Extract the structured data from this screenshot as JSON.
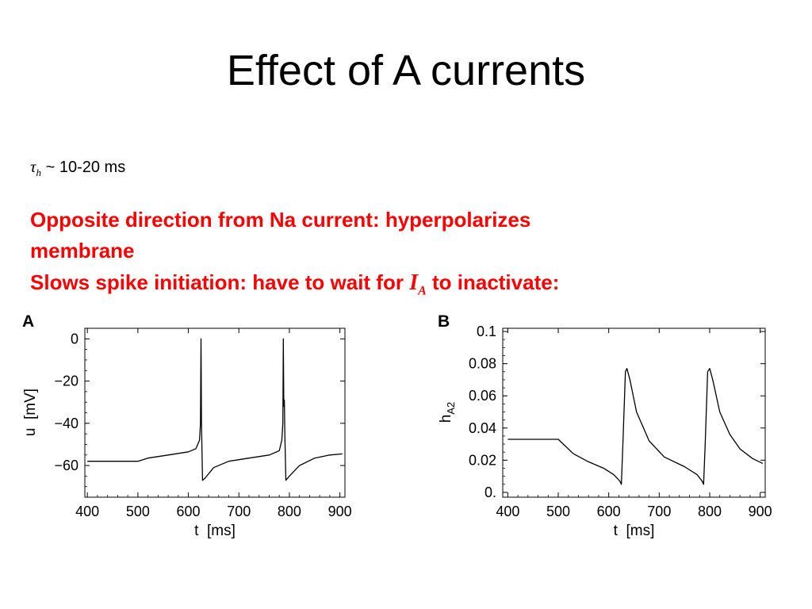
{
  "slide": {
    "title": "Effect of A currents",
    "tau_symbol": "τ",
    "tau_subscript": "h",
    "tau_text": " ~ 10-20 ms",
    "line1": "Opposite direction from Na current: hyperpolarizes",
    "line2": "membrane",
    "line3_before": "Slows spike initiation: have to wait for ",
    "ia_symbol": "I",
    "ia_subscript": "A",
    "line3_after": " to inactivate:"
  },
  "chart_data": [
    {
      "panel": "A",
      "type": "line",
      "xlabel": "t  [ms]",
      "ylabel": "u  [mV]",
      "xticks": [
        "400",
        "500",
        "600",
        "700",
        "800",
        "900"
      ],
      "yticks": [
        "0",
        "−20",
        "−40",
        "−60"
      ],
      "xlim": [
        395,
        910
      ],
      "ylim": [
        -75,
        5
      ],
      "grid": false,
      "series": [
        {
          "points": [
            [
              400,
              -58
            ],
            [
              500,
              -58
            ],
            [
              520,
              -56.5
            ],
            [
              560,
              -55
            ],
            [
              600,
              -53.5
            ],
            [
              615,
              -52
            ],
            [
              622,
              -48
            ],
            [
              624,
              -40
            ],
            [
              625,
              0
            ],
            [
              626,
              -40
            ],
            [
              628,
              -67
            ],
            [
              633,
              -66
            ],
            [
              650,
              -61
            ],
            [
              680,
              -58
            ],
            [
              720,
              -56.5
            ],
            [
              760,
              -55
            ],
            [
              780,
              -53
            ],
            [
              785,
              -48
            ],
            [
              787,
              -40
            ],
            [
              788,
              0
            ],
            [
              789,
              -32
            ],
            [
              790,
              -29
            ],
            [
              791,
              -45
            ],
            [
              793,
              -67
            ],
            [
              800,
              -65
            ],
            [
              820,
              -60
            ],
            [
              850,
              -56.5
            ],
            [
              880,
              -55
            ],
            [
              905,
              -54.5
            ]
          ]
        }
      ]
    },
    {
      "panel": "B",
      "type": "line",
      "xlabel": "t  [ms]",
      "ylabel": "h",
      "ylabel_sub": "A2",
      "xticks": [
        "400",
        "500",
        "600",
        "700",
        "800",
        "900"
      ],
      "yticks": [
        "0.",
        "0.02",
        "0.04",
        "0.06",
        "0.08",
        "0.1"
      ],
      "xlim": [
        390,
        910
      ],
      "ylim": [
        -0.003,
        0.102
      ],
      "grid": false,
      "series": [
        {
          "points": [
            [
              400,
              0.033
            ],
            [
              500,
              0.033
            ],
            [
              510,
              0.03
            ],
            [
              530,
              0.024
            ],
            [
              560,
              0.019
            ],
            [
              590,
              0.015
            ],
            [
              610,
              0.011
            ],
            [
              622,
              0.007
            ],
            [
              625,
              0.005
            ],
            [
              628,
              0.03
            ],
            [
              633,
              0.075
            ],
            [
              636,
              0.077
            ],
            [
              642,
              0.07
            ],
            [
              655,
              0.05
            ],
            [
              680,
              0.032
            ],
            [
              710,
              0.022
            ],
            [
              750,
              0.016
            ],
            [
              775,
              0.011
            ],
            [
              785,
              0.007
            ],
            [
              788,
              0.005
            ],
            [
              791,
              0.03
            ],
            [
              796,
              0.075
            ],
            [
              800,
              0.077
            ],
            [
              806,
              0.07
            ],
            [
              820,
              0.05
            ],
            [
              840,
              0.036
            ],
            [
              860,
              0.027
            ],
            [
              885,
              0.021
            ],
            [
              905,
              0.018
            ]
          ]
        }
      ]
    }
  ]
}
